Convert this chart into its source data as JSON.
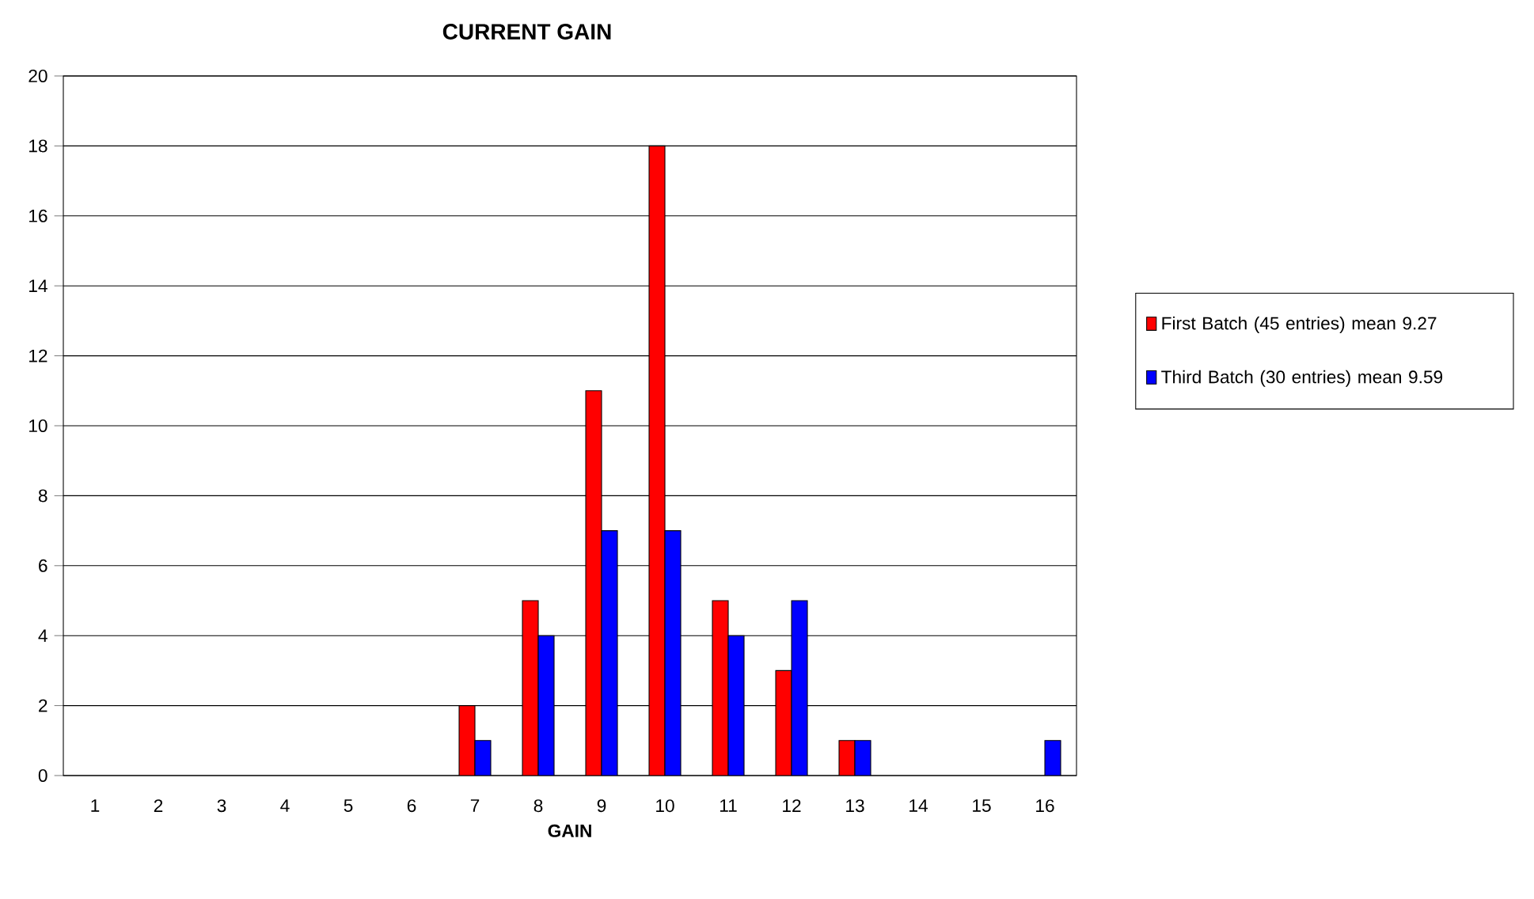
{
  "chart_data": {
    "type": "bar",
    "title": "CURRENT GAIN",
    "xlabel": "GAIN",
    "categories": [
      "1",
      "2",
      "3",
      "4",
      "5",
      "6",
      "7",
      "8",
      "9",
      "10",
      "11",
      "12",
      "13",
      "14",
      "15",
      "16"
    ],
    "series": [
      {
        "name": "First Batch (45 entries) mean 9.27",
        "color": "#ff0000",
        "values": [
          0,
          0,
          0,
          0,
          0,
          0,
          2,
          5,
          11,
          18,
          5,
          3,
          1,
          0,
          0,
          0
        ]
      },
      {
        "name": "Third Batch (30 entries) mean 9.59",
        "color": "#0000ff",
        "values": [
          0,
          0,
          0,
          0,
          0,
          0,
          1,
          4,
          7,
          7,
          4,
          5,
          1,
          0,
          0,
          1
        ]
      }
    ],
    "ylim": [
      0,
      20
    ],
    "yticks": [
      0,
      2,
      4,
      6,
      8,
      10,
      12,
      14,
      16,
      18,
      20
    ],
    "grid": "y",
    "legend": "right"
  }
}
